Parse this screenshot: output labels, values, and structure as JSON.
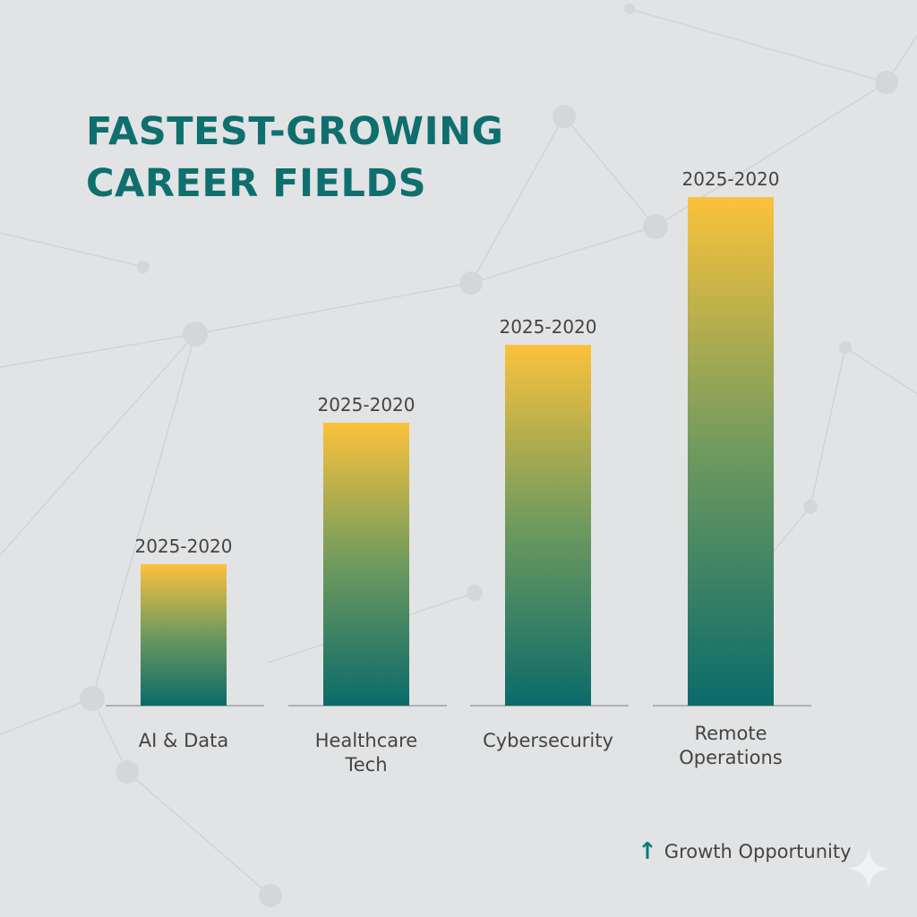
{
  "chart_data": {
    "type": "bar",
    "title": "FASTEST-GROWING CAREER FIELDS",
    "title_lines": [
      "FASTEST-GROWING",
      "CAREER FIELDS"
    ],
    "categories": [
      "AI & Data",
      "Healthcare Tech",
      "Cybersecurity",
      "Remote Operations"
    ],
    "category_lines": [
      [
        "AI & Data"
      ],
      [
        "Healthcare",
        "Tech"
      ],
      [
        "Cybersecurity"
      ],
      [
        "Remote",
        "Operations"
      ]
    ],
    "values": [
      158,
      316,
      403,
      568
    ],
    "value_note": "relative growth (no axis shown)",
    "data_labels": [
      "2025-2020",
      "2025-2020",
      "2025-2020",
      "2025-2020"
    ],
    "xlabel": "",
    "ylabel": "",
    "ylim": [
      0,
      600
    ],
    "grid": false,
    "legend": {
      "placement": "bottom-right",
      "entries": [
        {
          "label": "Growth Opportunity",
          "icon": "arrow-up-icon"
        }
      ]
    },
    "colors": {
      "bar_top": "#fbc23c",
      "bar_bottom": "#0a6b6b",
      "title": "#0f6f6f",
      "axis": "#9a9a9a",
      "text": "#444444"
    }
  }
}
